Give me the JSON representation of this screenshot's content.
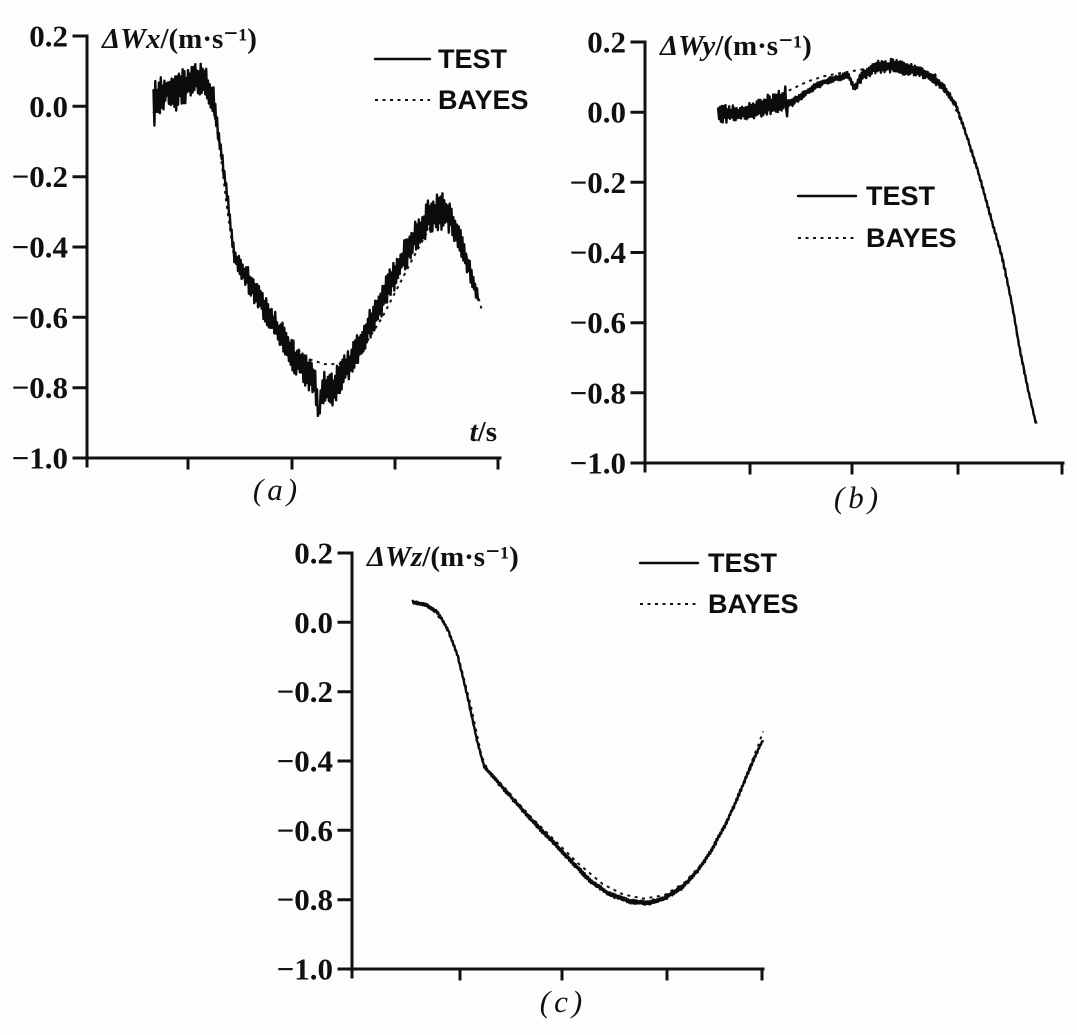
{
  "figure": {
    "description": "Scanned figure with three line charts comparing measured (TEST) and Bayes-estimated (BAYES) velocity errors",
    "ink_color": "#101010",
    "background_color": "#fdfdfb"
  },
  "chart_data": [
    {
      "id": "a",
      "type": "line",
      "caption": "(a)",
      "ylabel_var": "ΔWx",
      "ylabel_unit": "/(m·s⁻¹)",
      "xlabel_var": "t",
      "xlabel_unit": "/s",
      "ylim": [
        -1.0,
        0.2
      ],
      "y_ticks": [
        "0.2",
        "0.0",
        "−0.2",
        "−0.4",
        "−0.6",
        "−0.8",
        "−1.0"
      ],
      "x_tick_count": 4,
      "x_tick_labels": [],
      "legend": {
        "test": "TEST",
        "bayes": "BAYES"
      },
      "legend_position": "top-right",
      "grid": false,
      "series": [
        {
          "name": "TEST",
          "style": "solid-noisy",
          "x_unit": "fraction-of-axis",
          "points": [
            [
              0.161,
              0.0,
              0.075
            ],
            [
              0.176,
              0.03,
              0.055
            ],
            [
              0.195,
              0.05,
              0.05
            ],
            [
              0.217,
              0.045,
              0.06
            ],
            [
              0.241,
              0.06,
              0.05
            ],
            [
              0.267,
              0.08,
              0.045
            ],
            [
              0.289,
              0.065,
              0.05
            ],
            [
              0.306,
              0.02,
              0.04
            ],
            [
              0.32,
              -0.09,
              0.025
            ],
            [
              0.34,
              -0.26,
              0.02
            ],
            [
              0.357,
              -0.43,
              0.02
            ],
            [
              0.381,
              -0.475,
              0.035
            ],
            [
              0.417,
              -0.545,
              0.04
            ],
            [
              0.458,
              -0.63,
              0.045
            ],
            [
              0.499,
              -0.71,
              0.045
            ],
            [
              0.537,
              -0.765,
              0.05
            ],
            [
              0.552,
              -0.79,
              0.05
            ],
            [
              0.561,
              -0.875,
              0.02
            ],
            [
              0.57,
              -0.8,
              0.045
            ],
            [
              0.595,
              -0.805,
              0.05
            ],
            [
              0.619,
              -0.76,
              0.045
            ],
            [
              0.651,
              -0.7,
              0.045
            ],
            [
              0.687,
              -0.615,
              0.045
            ],
            [
              0.723,
              -0.53,
              0.045
            ],
            [
              0.759,
              -0.445,
              0.045
            ],
            [
              0.795,
              -0.37,
              0.045
            ],
            [
              0.827,
              -0.315,
              0.05
            ],
            [
              0.855,
              -0.295,
              0.055
            ],
            [
              0.88,
              -0.315,
              0.05
            ],
            [
              0.904,
              -0.38,
              0.04
            ],
            [
              0.928,
              -0.47,
              0.03
            ],
            [
              0.947,
              -0.545,
              0.015
            ]
          ]
        },
        {
          "name": "BAYES",
          "style": "dotted",
          "x_unit": "fraction-of-axis",
          "points": [
            [
              0.161,
              -0.02
            ],
            [
              0.18,
              0.03
            ],
            [
              0.215,
              0.05
            ],
            [
              0.255,
              0.07
            ],
            [
              0.285,
              0.05
            ],
            [
              0.305,
              0.0
            ],
            [
              0.322,
              -0.12
            ],
            [
              0.338,
              -0.28
            ],
            [
              0.355,
              -0.42
            ],
            [
              0.375,
              -0.475
            ],
            [
              0.42,
              -0.555
            ],
            [
              0.46,
              -0.625
            ],
            [
              0.5,
              -0.685
            ],
            [
              0.54,
              -0.72
            ],
            [
              0.575,
              -0.733
            ],
            [
              0.61,
              -0.733
            ],
            [
              0.645,
              -0.715
            ],
            [
              0.68,
              -0.665
            ],
            [
              0.715,
              -0.6
            ],
            [
              0.75,
              -0.52
            ],
            [
              0.79,
              -0.43
            ],
            [
              0.825,
              -0.355
            ],
            [
              0.855,
              -0.315
            ],
            [
              0.875,
              -0.315
            ],
            [
              0.895,
              -0.35
            ],
            [
              0.92,
              -0.43
            ],
            [
              0.94,
              -0.51
            ],
            [
              0.955,
              -0.575
            ]
          ]
        }
      ]
    },
    {
      "id": "b",
      "type": "line",
      "caption": "(b)",
      "ylabel_var": "ΔWy",
      "ylabel_unit": "/(m·s⁻¹)",
      "ylim": [
        -1.0,
        0.2
      ],
      "y_ticks": [
        "0.2",
        "0.0",
        "−0.2",
        "−0.4",
        "−0.6",
        "−0.8",
        "−1.0"
      ],
      "x_tick_count": 4,
      "x_tick_labels": [],
      "legend": {
        "test": "TEST",
        "bayes": "BAYES"
      },
      "legend_position": "center",
      "grid": false,
      "series": [
        {
          "name": "TEST",
          "style": "solid-noisy",
          "x_unit": "fraction-of-axis",
          "points": [
            [
              0.175,
              -0.005,
              0.028
            ],
            [
              0.215,
              -0.005,
              0.026
            ],
            [
              0.256,
              0.005,
              0.026
            ],
            [
              0.294,
              0.02,
              0.03
            ],
            [
              0.323,
              0.03,
              0.032
            ],
            [
              0.334,
              0.03,
              0.02
            ],
            [
              0.3365,
              0.105,
              0.004
            ],
            [
              0.3385,
              -0.05,
              0.004
            ],
            [
              0.341,
              0.025,
              0.012
            ],
            [
              0.354,
              0.03,
              0.012
            ],
            [
              0.39,
              0.06,
              0.01
            ],
            [
              0.426,
              0.085,
              0.009
            ],
            [
              0.462,
              0.098,
              0.009
            ],
            [
              0.486,
              0.105,
              0.009
            ],
            [
              0.502,
              0.068,
              0.012
            ],
            [
              0.511,
              0.09,
              0.014
            ],
            [
              0.521,
              0.105,
              0.018
            ],
            [
              0.55,
              0.128,
              0.02
            ],
            [
              0.586,
              0.132,
              0.02
            ],
            [
              0.622,
              0.126,
              0.02
            ],
            [
              0.658,
              0.115,
              0.018
            ],
            [
              0.689,
              0.1,
              0.015
            ],
            [
              0.718,
              0.065,
              0.01
            ],
            [
              0.744,
              0.02,
              0.007
            ],
            [
              0.77,
              -0.07,
              0.006
            ],
            [
              0.797,
              -0.17,
              0.006
            ],
            [
              0.825,
              -0.29,
              0.006
            ],
            [
              0.856,
              -0.42,
              0.006
            ],
            [
              0.88,
              -0.56,
              0.006
            ],
            [
              0.897,
              -0.68,
              0.005
            ],
            [
              0.918,
              -0.8,
              0.005
            ],
            [
              0.934,
              -0.88,
              0.004
            ]
          ]
        },
        {
          "name": "BAYES",
          "style": "dotted",
          "x_unit": "fraction-of-axis",
          "points": [
            [
              0.175,
              0.005
            ],
            [
              0.26,
              0.012
            ],
            [
              0.3,
              0.03
            ],
            [
              0.325,
              0.05
            ],
            [
              0.355,
              0.068
            ],
            [
              0.39,
              0.088
            ],
            [
              0.43,
              0.103
            ],
            [
              0.47,
              0.112
            ],
            [
              0.52,
              0.122
            ],
            [
              0.56,
              0.128
            ],
            [
              0.6,
              0.128
            ],
            [
              0.64,
              0.118
            ],
            [
              0.675,
              0.103
            ],
            [
              0.705,
              0.075
            ],
            [
              0.735,
              0.03
            ],
            [
              0.762,
              -0.04
            ],
            [
              0.79,
              -0.14
            ],
            [
              0.82,
              -0.27
            ],
            [
              0.85,
              -0.4
            ],
            [
              0.875,
              -0.53
            ],
            [
              0.895,
              -0.66
            ],
            [
              0.915,
              -0.78
            ],
            [
              0.93,
              -0.86
            ],
            [
              0.94,
              -0.9
            ]
          ]
        }
      ]
    },
    {
      "id": "c",
      "type": "line",
      "caption": "(c)",
      "ylabel_var": "ΔWz",
      "ylabel_unit": "/(m·s⁻¹)",
      "ylim": [
        -1.0,
        0.2
      ],
      "y_ticks": [
        "0.2",
        "0.0",
        "−0.2",
        "−0.4",
        "−0.6",
        "−0.8",
        "−1.0"
      ],
      "x_tick_count": 4,
      "x_tick_labels": [],
      "legend": {
        "test": "TEST",
        "bayes": "BAYES"
      },
      "legend_position": "top-right",
      "grid": false,
      "series": [
        {
          "name": "TEST",
          "style": "solid-noisy",
          "x_unit": "fraction-of-axis",
          "points": [
            [
              0.148,
              0.058,
              0.004
            ],
            [
              0.178,
              0.052,
              0.004
            ],
            [
              0.209,
              0.028,
              0.004
            ],
            [
              0.234,
              -0.022,
              0.004
            ],
            [
              0.258,
              -0.1,
              0.004
            ],
            [
              0.282,
              -0.22,
              0.004
            ],
            [
              0.304,
              -0.34,
              0.004
            ],
            [
              0.321,
              -0.415,
              0.004
            ],
            [
              0.348,
              -0.452,
              0.005
            ],
            [
              0.384,
              -0.5,
              0.005
            ],
            [
              0.433,
              -0.565,
              0.006
            ],
            [
              0.482,
              -0.625,
              0.006
            ],
            [
              0.53,
              -0.685,
              0.006
            ],
            [
              0.579,
              -0.745,
              0.006
            ],
            [
              0.628,
              -0.785,
              0.006
            ],
            [
              0.676,
              -0.805,
              0.006
            ],
            [
              0.72,
              -0.81,
              0.006
            ],
            [
              0.761,
              -0.795,
              0.006
            ],
            [
              0.803,
              -0.765,
              0.006
            ],
            [
              0.842,
              -0.715,
              0.006
            ],
            [
              0.876,
              -0.655,
              0.006
            ],
            [
              0.908,
              -0.585,
              0.006
            ],
            [
              0.937,
              -0.51,
              0.006
            ],
            [
              0.963,
              -0.435,
              0.006
            ],
            [
              0.985,
              -0.375,
              0.005
            ],
            [
              1.0,
              -0.34,
              0.004
            ]
          ]
        },
        {
          "name": "BAYES",
          "style": "dotted",
          "x_unit": "fraction-of-axis",
          "points": [
            [
              0.148,
              0.058
            ],
            [
              0.19,
              0.045
            ],
            [
              0.225,
              -0.005
            ],
            [
              0.258,
              -0.095
            ],
            [
              0.29,
              -0.245
            ],
            [
              0.315,
              -0.385
            ],
            [
              0.33,
              -0.425
            ],
            [
              0.37,
              -0.475
            ],
            [
              0.43,
              -0.555
            ],
            [
              0.49,
              -0.625
            ],
            [
              0.55,
              -0.695
            ],
            [
              0.61,
              -0.755
            ],
            [
              0.66,
              -0.785
            ],
            [
              0.71,
              -0.797
            ],
            [
              0.76,
              -0.787
            ],
            [
              0.81,
              -0.75
            ],
            [
              0.86,
              -0.685
            ],
            [
              0.9,
              -0.6
            ],
            [
              0.935,
              -0.515
            ],
            [
              0.965,
              -0.425
            ],
            [
              0.99,
              -0.35
            ],
            [
              1.0,
              -0.315
            ]
          ]
        }
      ]
    }
  ]
}
